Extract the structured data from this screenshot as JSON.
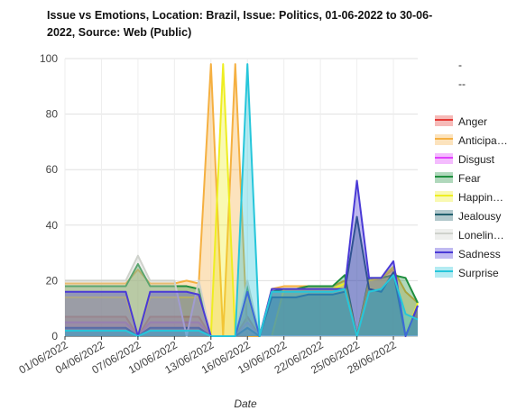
{
  "chart_data": {
    "type": "area",
    "title": "Issue vs Emotions, Location: Brazil, Issue: Politics, 01-06-2022 to 30-06-2022, Source: Web (Public)",
    "xlabel": "Date",
    "ylabel": "",
    "ylim": [
      0,
      100
    ],
    "yticks": [
      "0",
      "20",
      "40",
      "60",
      "80",
      "100"
    ],
    "x_tick_labels": [
      "01/06/2022",
      "04/06/2022",
      "07/06/2022",
      "10/06/2022",
      "13/06/2022",
      "16/06/2022",
      "19/06/2022",
      "22/06/2022",
      "25/06/2022",
      "28/06/2022"
    ],
    "grid": true,
    "legend_position": "right",
    "legend_extra": [
      "-",
      "--"
    ],
    "x": [
      "01/06/2022",
      "02/06/2022",
      "03/06/2022",
      "04/06/2022",
      "05/06/2022",
      "06/06/2022",
      "07/06/2022",
      "08/06/2022",
      "09/06/2022",
      "10/06/2022",
      "11/06/2022",
      "12/06/2022",
      "13/06/2022",
      "14/06/2022",
      "15/06/2022",
      "16/06/2022",
      "17/06/2022",
      "18/06/2022",
      "19/06/2022",
      "20/06/2022",
      "21/06/2022",
      "22/06/2022",
      "23/06/2022",
      "24/06/2022",
      "25/06/2022",
      "26/06/2022",
      "27/06/2022",
      "28/06/2022",
      "29/06/2022",
      "30/06/2022"
    ],
    "series": [
      {
        "name": "Anger",
        "color": "#e53935",
        "values": [
          7,
          7,
          7,
          7,
          7,
          7,
          0,
          7,
          7,
          7,
          7,
          7,
          0,
          0,
          0,
          7,
          0,
          0,
          0,
          0,
          0,
          0,
          0,
          0,
          0,
          0,
          0,
          0,
          0,
          0
        ]
      },
      {
        "name": "Anticipa…",
        "color": "#f5b041",
        "values": [
          19,
          19,
          19,
          19,
          19,
          19,
          24,
          19,
          19,
          19,
          20,
          19,
          98,
          0,
          98,
          0,
          0,
          17,
          18,
          18,
          18,
          18,
          18,
          20,
          0,
          20,
          21,
          24,
          16,
          12
        ]
      },
      {
        "name": "Disgust",
        "color": "#e040fb",
        "values": [
          5,
          5,
          5,
          5,
          5,
          5,
          0,
          5,
          5,
          5,
          5,
          5,
          0,
          0,
          0,
          5,
          0,
          0,
          0,
          0,
          0,
          0,
          0,
          0,
          0,
          0,
          0,
          0,
          0,
          0
        ]
      },
      {
        "name": "Fear",
        "color": "#1e8e3e",
        "values": [
          18,
          18,
          18,
          18,
          18,
          18,
          26,
          18,
          18,
          18,
          18,
          17,
          0,
          0,
          0,
          18,
          0,
          16,
          17,
          17,
          18,
          18,
          18,
          22,
          0,
          21,
          21,
          22,
          21,
          12
        ]
      },
      {
        "name": "Happin…",
        "color": "#eeee22",
        "values": [
          14,
          14,
          14,
          14,
          14,
          14,
          0,
          14,
          14,
          14,
          14,
          14,
          0,
          98,
          0,
          14,
          0,
          0,
          17,
          17,
          17,
          17,
          17,
          19,
          0,
          20,
          21,
          25,
          0,
          12
        ]
      },
      {
        "name": "Jealousy",
        "color": "#22606e",
        "values": [
          3,
          3,
          3,
          3,
          3,
          3,
          0,
          3,
          3,
          3,
          3,
          3,
          0,
          0,
          0,
          3,
          0,
          14,
          14,
          14,
          15,
          15,
          15,
          16,
          43,
          17,
          16,
          23,
          0,
          11
        ]
      },
      {
        "name": "Lonelin…",
        "color": "#cfd2cc",
        "values": [
          20,
          20,
          20,
          20,
          20,
          20,
          29,
          20,
          20,
          20,
          0,
          20,
          0,
          0,
          0,
          20,
          0,
          0,
          0,
          0,
          0,
          0,
          0,
          0,
          0,
          0,
          0,
          0,
          0,
          0
        ]
      },
      {
        "name": "Sadness",
        "color": "#4a3ad6",
        "values": [
          16,
          16,
          16,
          16,
          16,
          16,
          0,
          16,
          16,
          16,
          16,
          15,
          0,
          0,
          0,
          16,
          0,
          17,
          17,
          17,
          17,
          17,
          17,
          17,
          56,
          21,
          21,
          27,
          0,
          11
        ]
      },
      {
        "name": "Surprise",
        "color": "#26c6da",
        "values": [
          2,
          2,
          2,
          2,
          2,
          2,
          0,
          2,
          2,
          2,
          2,
          2,
          0,
          0,
          0,
          98,
          0,
          16,
          16,
          16,
          16,
          16,
          16,
          17,
          0,
          16,
          17,
          22,
          8,
          6
        ]
      }
    ]
  }
}
